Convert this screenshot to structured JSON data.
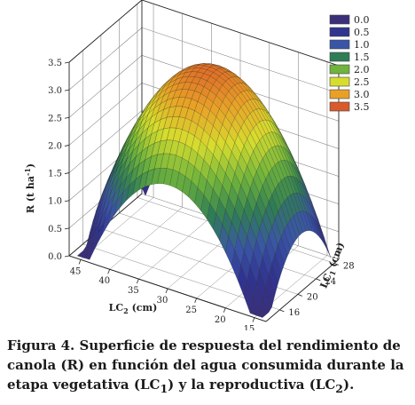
{
  "chart_data": {
    "type": "surface",
    "title": "",
    "xlabel_main": "LC",
    "xlabel_sub": "2",
    "xlabel_unit": " (cm)",
    "ylabel_main": "LC",
    "ylabel_sub": "1",
    "ylabel_unit": " (cm)",
    "zlabel_main": "R (t ha",
    "zlabel_sup": "-1",
    "zlabel_end": ")",
    "x_axis_name": "LC2",
    "y_axis_name": "LC1",
    "x_ticks": [
      "45",
      "40",
      "35",
      "30",
      "25",
      "20",
      "15"
    ],
    "x_tick_values": [
      45,
      40,
      35,
      30,
      25,
      20,
      15
    ],
    "y_ticks": [
      "16",
      "20",
      "24",
      "28"
    ],
    "y_tick_values": [
      16,
      20,
      24,
      28
    ],
    "z_ticks": [
      "0.0",
      "0.5",
      "1.0",
      "1.5",
      "2.0",
      "2.5",
      "3.0",
      "3.5"
    ],
    "z_tick_values": [
      0,
      0.5,
      1.0,
      1.5,
      2.0,
      2.5,
      3.0,
      3.5
    ],
    "xlim": [
      13,
      47
    ],
    "ylim": [
      13,
      29
    ],
    "zlim": [
      0,
      3.5
    ],
    "peak": {
      "LC2": 30,
      "LC1": 22,
      "R": 3.35
    },
    "surface_model": "R = peak_R - a*(LC2 - peak_LC2)^2 - b*(LC1 - peak_LC1)^2",
    "curvature": {
      "a": 0.0095,
      "b": 0.021
    },
    "legend": {
      "position": "top-right",
      "entries": [
        {
          "label": "0.0",
          "color": "#3b2f7a"
        },
        {
          "label": "0.5",
          "color": "#30338f"
        },
        {
          "label": "1.0",
          "color": "#3a55a6"
        },
        {
          "label": "1.5",
          "color": "#2f7d55"
        },
        {
          "label": "2.0",
          "color": "#6fb43c"
        },
        {
          "label": "2.5",
          "color": "#d7dd2e"
        },
        {
          "label": "3.0",
          "color": "#e8a027"
        },
        {
          "label": "3.5",
          "color": "#d95a2b"
        }
      ]
    }
  },
  "caption": {
    "title": "Figura 4.",
    "text_1": " Superficie de respuesta  del rendimiento de canola (R) en función del agua consumida durante la etapa vegetativa (LC",
    "sub_1": "1",
    "text_2": ") y la reproductiva (LC",
    "sub_2": "2",
    "text_3": ")."
  }
}
